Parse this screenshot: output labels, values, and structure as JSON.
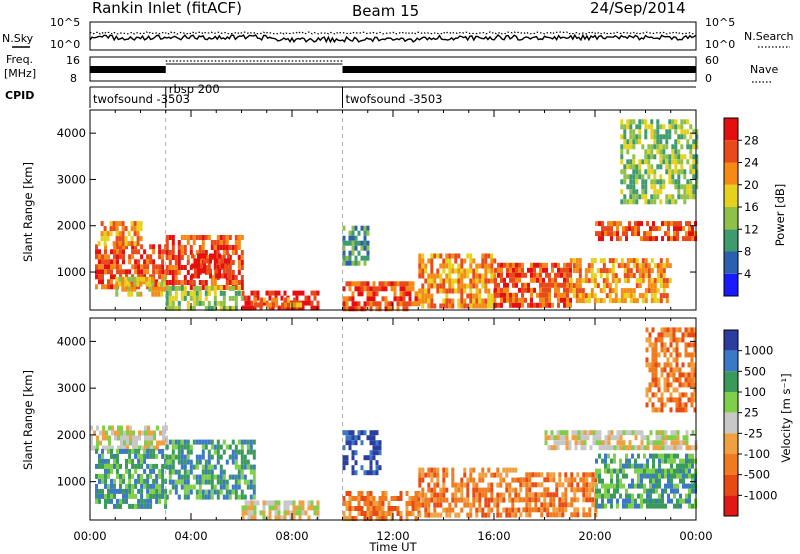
{
  "header": {
    "station": "Rankin Inlet (fitACF)",
    "beam": "Beam 15",
    "date": "24/Sep/2014"
  },
  "top_panels": {
    "nsky_label": "N.Sky",
    "nsky_ticks": [
      "10^5",
      "10^0"
    ],
    "nsearch_label": "N.Search",
    "nsearch_ticks": [
      "10^5",
      "10^0"
    ],
    "freq_label_line1": "Freq.",
    "freq_label_line2": "[MHz]",
    "freq_ticks": [
      "16",
      "8"
    ],
    "nave_label": "Nave",
    "nave_ticks": [
      "60",
      "0"
    ],
    "cpid_label": "CPID",
    "cpid_segments": [
      {
        "start_hour": 0,
        "end_hour": 3,
        "label": "twofsound -3503"
      },
      {
        "start_hour": 3,
        "end_hour": 10,
        "label": "rbsp 200"
      },
      {
        "start_hour": 10,
        "end_hour": 24,
        "label": "twofsound -3503"
      }
    ]
  },
  "panels": {
    "power": {
      "ylabel": "Slant Range [km]",
      "cbar_label": "Power [dB]"
    },
    "velocity": {
      "ylabel": "Slant Range [km]",
      "cbar_label": "Velocity [m s⁻¹]"
    }
  },
  "xaxis": {
    "label": "Time UT",
    "ticks": [
      "00:00",
      "04:00",
      "08:00",
      "12:00",
      "16:00",
      "20:00",
      "00:00"
    ]
  },
  "colors": {
    "power": [
      "#1a1aff",
      "#2c5fb0",
      "#3f9a6e",
      "#8fc04a",
      "#e6d21e",
      "#f58a14",
      "#e84a1c",
      "#e60f0f"
    ],
    "velocity": [
      "#2b3d9e",
      "#3b78c8",
      "#3a9a5c",
      "#7fcf4a",
      "#c8c8c8",
      "#f0a040",
      "#f07a1e",
      "#e84a14",
      "#e01818"
    ]
  },
  "chart_data": [
    {
      "type": "heatmap",
      "title": "Power",
      "x_range_hours": [
        0,
        24
      ],
      "y_range_km": [
        180,
        4500
      ],
      "ylabel": "Slant Range [km]",
      "xlabel": "",
      "yticks": [
        1000,
        2000,
        3000,
        4000
      ],
      "colorbar": {
        "label": "Power [dB]",
        "ticks": [
          "4",
          "8",
          "12",
          "16",
          "20",
          "24",
          "28"
        ],
        "bins": 8
      },
      "regions": [
        {
          "t": [
            0.2,
            3.0
          ],
          "r": [
            700,
            1600
          ],
          "level": 6
        },
        {
          "t": [
            0.3,
            2.0
          ],
          "r": [
            1600,
            2100
          ],
          "level": 5
        },
        {
          "t": [
            1.0,
            3.0
          ],
          "r": [
            500,
            900
          ],
          "level": 4
        },
        {
          "t": [
            3.0,
            6.0
          ],
          "r": [
            700,
            1800
          ],
          "level": 6
        },
        {
          "t": [
            4.0,
            5.5
          ],
          "r": [
            900,
            1400
          ],
          "level": 7
        },
        {
          "t": [
            6.0,
            9.0
          ],
          "r": [
            200,
            600
          ],
          "level": 7
        },
        {
          "t": [
            3.0,
            6.0
          ],
          "r": [
            250,
            700
          ],
          "level": 3
        },
        {
          "t": [
            6.5,
            8.5
          ],
          "r": [
            250,
            450
          ],
          "level": 5
        },
        {
          "t": [
            10.0,
            11.0
          ],
          "r": [
            1200,
            2000
          ],
          "level": 2
        },
        {
          "t": [
            10.0,
            13.0
          ],
          "r": [
            250,
            800
          ],
          "level": 6
        },
        {
          "t": [
            13.0,
            16.0
          ],
          "r": [
            300,
            1400
          ],
          "level": 5
        },
        {
          "t": [
            16.0,
            19.0
          ],
          "r": [
            300,
            1200
          ],
          "level": 6
        },
        {
          "t": [
            19.0,
            23.0
          ],
          "r": [
            400,
            1300
          ],
          "level": 5
        },
        {
          "t": [
            20.0,
            24.0
          ],
          "r": [
            1700,
            2100
          ],
          "level": 6
        },
        {
          "t": [
            21.0,
            24.0
          ],
          "r": [
            2500,
            4300
          ],
          "level": 3
        }
      ]
    },
    {
      "type": "heatmap",
      "title": "Velocity",
      "x_range_hours": [
        0,
        24
      ],
      "y_range_km": [
        180,
        4500
      ],
      "ylabel": "Slant Range [km]",
      "xlabel": "Time UT",
      "yticks": [
        1000,
        2000,
        3000,
        4000
      ],
      "colorbar": {
        "label": "Velocity [m s⁻¹]",
        "ticks": [
          "1000",
          "500",
          "100",
          "25",
          "-25",
          "-100",
          "-500",
          "-1000"
        ],
        "bins": 9
      },
      "regions": [
        {
          "t": [
            0.0,
            3.0
          ],
          "r": [
            1700,
            2200
          ],
          "level": 4
        },
        {
          "t": [
            0.2,
            3.0
          ],
          "r": [
            500,
            1700
          ],
          "level": 2
        },
        {
          "t": [
            3.0,
            6.5
          ],
          "r": [
            700,
            1900
          ],
          "level": 2
        },
        {
          "t": [
            6.0,
            9.0
          ],
          "r": [
            250,
            600
          ],
          "level": 4
        },
        {
          "t": [
            10.0,
            11.5
          ],
          "r": [
            1200,
            2100
          ],
          "level": 0
        },
        {
          "t": [
            10.0,
            13.0
          ],
          "r": [
            250,
            800
          ],
          "level": 6
        },
        {
          "t": [
            13.0,
            17.0
          ],
          "r": [
            300,
            1300
          ],
          "level": 6
        },
        {
          "t": [
            17.0,
            20.0
          ],
          "r": [
            300,
            1200
          ],
          "level": 6
        },
        {
          "t": [
            18.0,
            24.0
          ],
          "r": [
            1700,
            2100
          ],
          "level": 4
        },
        {
          "t": [
            20.0,
            24.0
          ],
          "r": [
            500,
            1600
          ],
          "level": 2
        },
        {
          "t": [
            22.0,
            24.0
          ],
          "r": [
            2500,
            4300
          ],
          "level": 6
        }
      ]
    }
  ]
}
